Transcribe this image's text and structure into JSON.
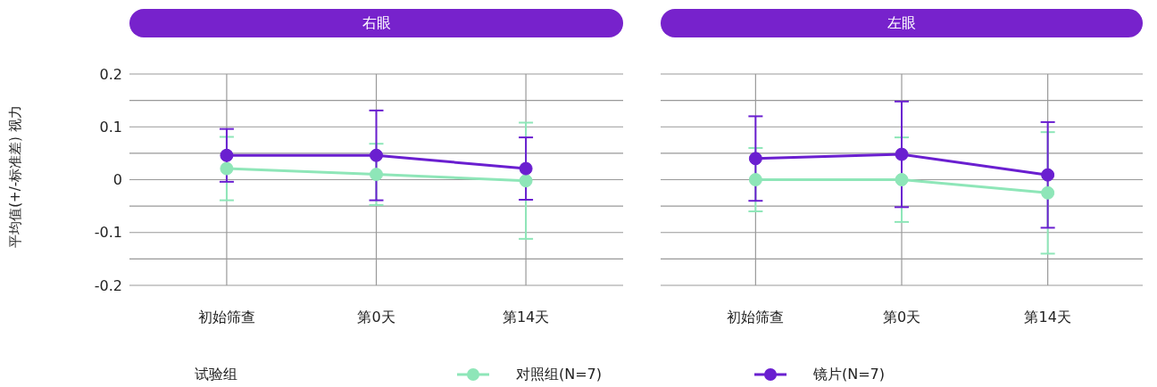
{
  "chart_data": [
    {
      "type": "line",
      "title": "右眼",
      "ylabel": "平均值(+/-标准差) 视力",
      "categories": [
        "初始筛查",
        "第0天",
        "第14天"
      ],
      "ylim": [
        -0.2,
        0.2
      ],
      "yticks": [
        -0.2,
        {
          "value": -0.15,
          "label": null
        },
        -0.1,
        {
          "value": -0.05,
          "label": null
        },
        0,
        {
          "value": 0.05,
          "label": null
        },
        0.1,
        {
          "value": 0.15,
          "label": null
        },
        0.2
      ],
      "grid": true,
      "marker": "circle",
      "line_style": "solid",
      "legend": "bottom",
      "legend_title": "试验组",
      "series": [
        {
          "name": "对照组(N=7)",
          "color": "#8ee6b8",
          "values": [
            0.021,
            0.01,
            -0.002
          ],
          "errors": [
            0.06,
            0.058,
            0.11
          ]
        },
        {
          "name": "镜片(N=7)",
          "color": "#6a1fd0",
          "values": [
            0.046,
            0.046,
            0.021
          ],
          "errors": [
            0.05,
            0.085,
            0.059
          ]
        }
      ]
    },
    {
      "type": "line",
      "title": "左眼",
      "categories": [
        "初始筛查",
        "第0天",
        "第14天"
      ],
      "ylim": [
        -0.2,
        0.2
      ],
      "yticks": [
        -0.2,
        {
          "value": -0.15,
          "label": null
        },
        -0.1,
        {
          "value": -0.05,
          "label": null
        },
        0,
        {
          "value": 0.05,
          "label": null
        },
        0.1,
        {
          "value": 0.15,
          "label": null
        },
        0.2
      ],
      "tick_labels": "x",
      "grid": true,
      "marker": "circle",
      "line_style": "solid",
      "series": [
        {
          "color": "#8ee6b8",
          "values": [
            0,
            0,
            -0.025
          ],
          "errors": [
            0.06,
            0.08,
            0.115
          ]
        },
        {
          "color": "#6a1fd0",
          "values": [
            0.04,
            0.048,
            0.009
          ],
          "errors": [
            0.08,
            0.1,
            0.1
          ]
        }
      ]
    }
  ]
}
